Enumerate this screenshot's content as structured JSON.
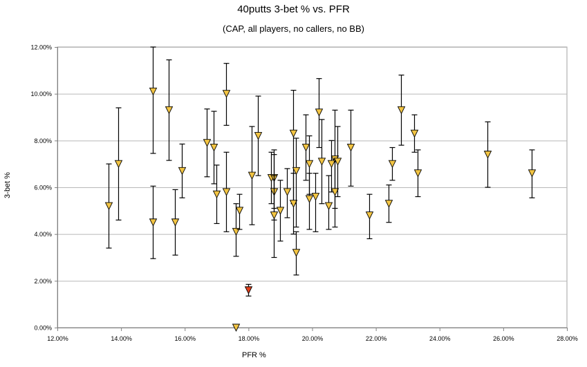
{
  "chart_data": {
    "type": "scatter",
    "title": "40putts 3-bet % vs. PFR",
    "subtitle": "(CAP, all players, no callers, no BB)",
    "xlabel": "PFR %",
    "ylabel": "3-bet %",
    "xlim": [
      12,
      28
    ],
    "ylim": [
      0,
      12
    ],
    "xticks": [
      "12.00%",
      "14.00%",
      "16.00%",
      "18.00%",
      "20.00%",
      "22.00%",
      "24.00%",
      "26.00%",
      "28.00%"
    ],
    "yticks": [
      "0.00%",
      "2.00%",
      "4.00%",
      "6.00%",
      "8.00%",
      "10.00%",
      "12.00%"
    ],
    "grid": "horizontal",
    "marker_color": "#f2c443",
    "highlight_color": "#e0401c",
    "points": [
      {
        "x": 13.6,
        "y": 5.2,
        "lo": 3.4,
        "hi": 7.0
      },
      {
        "x": 13.9,
        "y": 7.0,
        "lo": 4.6,
        "hi": 9.4
      },
      {
        "x": 15.0,
        "y": 10.1,
        "lo": 7.45,
        "hi": 12.0
      },
      {
        "x": 15.0,
        "y": 4.5,
        "lo": 2.95,
        "hi": 6.05
      },
      {
        "x": 15.5,
        "y": 9.3,
        "lo": 7.15,
        "hi": 11.45
      },
      {
        "x": 15.7,
        "y": 4.5,
        "lo": 3.1,
        "hi": 5.9
      },
      {
        "x": 15.9,
        "y": 6.7,
        "lo": 5.55,
        "hi": 7.85
      },
      {
        "x": 16.7,
        "y": 7.9,
        "lo": 6.45,
        "hi": 9.35
      },
      {
        "x": 16.9,
        "y": 7.7,
        "lo": 6.15,
        "hi": 9.25
      },
      {
        "x": 17.0,
        "y": 5.7,
        "lo": 4.45,
        "hi": 6.95
      },
      {
        "x": 17.3,
        "y": 10.0,
        "lo": 8.65,
        "hi": 11.3
      },
      {
        "x": 17.3,
        "y": 5.8,
        "lo": 4.1,
        "hi": 7.5
      },
      {
        "x": 17.6,
        "y": 4.1,
        "lo": 3.05,
        "hi": 5.3
      },
      {
        "x": 17.7,
        "y": 5.0,
        "lo": 4.2,
        "hi": 5.7
      },
      {
        "x": 17.6,
        "y": 0.0
      },
      {
        "x": 18.0,
        "y": 1.6,
        "lo": 1.35,
        "hi": 1.85,
        "highlight": true
      },
      {
        "x": 18.1,
        "y": 6.5,
        "lo": 4.4,
        "hi": 8.6
      },
      {
        "x": 18.3,
        "y": 8.2,
        "lo": 6.5,
        "hi": 9.9
      },
      {
        "x": 18.7,
        "y": 6.4,
        "lo": 5.3,
        "hi": 7.5
      },
      {
        "x": 18.8,
        "y": 6.4,
        "lo": 5.1,
        "hi": 7.6
      },
      {
        "x": 18.8,
        "y": 5.8,
        "lo": 4.6,
        "hi": 7.4
      },
      {
        "x": 18.8,
        "y": 4.8,
        "lo": 3.0,
        "hi": 6.5
      },
      {
        "x": 19.0,
        "y": 5.0,
        "lo": 3.7,
        "hi": 6.3
      },
      {
        "x": 19.2,
        "y": 5.8,
        "lo": 4.7,
        "hi": 6.8
      },
      {
        "x": 19.4,
        "y": 8.3,
        "lo": 5.3,
        "hi": 10.15
      },
      {
        "x": 19.4,
        "y": 5.3,
        "lo": 4.0,
        "hi": 6.6
      },
      {
        "x": 19.5,
        "y": 6.7,
        "lo": 4.3,
        "hi": 8.1
      },
      {
        "x": 19.5,
        "y": 3.2,
        "lo": 2.25,
        "hi": 4.1
      },
      {
        "x": 19.8,
        "y": 7.7,
        "lo": 6.3,
        "hi": 9.1
      },
      {
        "x": 19.9,
        "y": 7.0,
        "lo": 5.7,
        "hi": 8.2
      },
      {
        "x": 19.9,
        "y": 5.5,
        "lo": 4.2,
        "hi": 6.6
      },
      {
        "x": 20.1,
        "y": 5.6,
        "lo": 4.1,
        "hi": 6.6
      },
      {
        "x": 20.2,
        "y": 9.2,
        "lo": 7.7,
        "hi": 10.65
      },
      {
        "x": 20.3,
        "y": 7.1,
        "lo": 5.3,
        "hi": 8.9
      },
      {
        "x": 20.5,
        "y": 5.2,
        "lo": 4.2,
        "hi": 6.5
      },
      {
        "x": 20.6,
        "y": 7.0,
        "lo": 5.8,
        "hi": 8.0
      },
      {
        "x": 20.7,
        "y": 7.2,
        "lo": 5.1,
        "hi": 9.3
      },
      {
        "x": 20.7,
        "y": 5.8,
        "lo": 4.3,
        "hi": 7.2
      },
      {
        "x": 20.8,
        "y": 7.1,
        "lo": 5.6,
        "hi": 8.6
      },
      {
        "x": 21.2,
        "y": 7.7,
        "lo": 6.05,
        "hi": 9.3
      },
      {
        "x": 21.8,
        "y": 4.8,
        "lo": 3.8,
        "hi": 5.7
      },
      {
        "x": 22.4,
        "y": 5.3,
        "lo": 4.5,
        "hi": 6.1
      },
      {
        "x": 22.5,
        "y": 7.0,
        "lo": 6.3,
        "hi": 7.7
      },
      {
        "x": 22.8,
        "y": 9.3,
        "lo": 7.8,
        "hi": 10.8
      },
      {
        "x": 23.2,
        "y": 8.3,
        "lo": 7.5,
        "hi": 9.1
      },
      {
        "x": 23.3,
        "y": 6.6,
        "lo": 5.6,
        "hi": 7.6
      },
      {
        "x": 25.5,
        "y": 7.4,
        "lo": 6.0,
        "hi": 8.8
      },
      {
        "x": 26.9,
        "y": 6.6,
        "lo": 5.55,
        "hi": 7.6
      }
    ]
  }
}
